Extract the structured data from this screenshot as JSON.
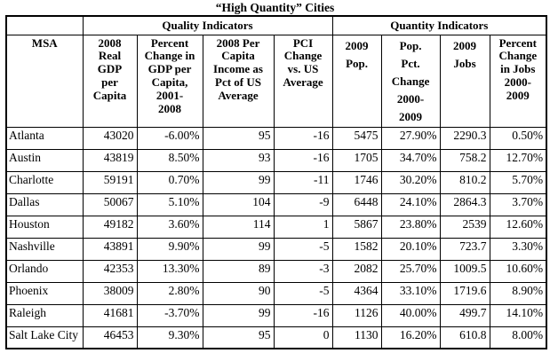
{
  "title": "“High Quantity” Cities",
  "table": {
    "group_headers": {
      "corner": "",
      "quality": "Quality Indicators",
      "quantity": "Quantity Indicators"
    },
    "columns": [
      {
        "label": "MSA"
      },
      {
        "label": "2008\nReal\nGDP\nper\nCapita"
      },
      {
        "label": "Percent\nChange in\nGDP per\nCapita,\n2001-\n2008"
      },
      {
        "label": "2008 Per\nCapita\nIncome as\nPct of US\nAverage"
      },
      {
        "label": "PCI\nChange\nvs. US\nAverage"
      },
      {
        "label": "2009\nPop."
      },
      {
        "label": "Pop.\nPct.\nChange\n2000-\n2009"
      },
      {
        "label": "2009\nJobs"
      },
      {
        "label": "Percent\nChange\nin Jobs\n2000-\n2009"
      }
    ],
    "rows": [
      [
        "Atlanta",
        "43020",
        "-6.00%",
        "95",
        "-16",
        "5475",
        "27.90%",
        "2290.3",
        "0.50%"
      ],
      [
        "Austin",
        "43819",
        "8.50%",
        "93",
        "-16",
        "1705",
        "34.70%",
        "758.2",
        "12.70%"
      ],
      [
        "Charlotte",
        "59191",
        "0.70%",
        "99",
        "-11",
        "1746",
        "30.20%",
        "810.2",
        "5.70%"
      ],
      [
        "Dallas",
        "50067",
        "5.10%",
        "104",
        "-9",
        "6448",
        "24.10%",
        "2864.3",
        "3.70%"
      ],
      [
        "Houston",
        "49182",
        "3.60%",
        "114",
        "1",
        "5867",
        "23.80%",
        "2539",
        "12.60%"
      ],
      [
        "Nashville",
        "43891",
        "9.90%",
        "99",
        "-5",
        "1582",
        "20.10%",
        "723.7",
        "3.30%"
      ],
      [
        "Orlando",
        "42353",
        "13.30%",
        "89",
        "-3",
        "2082",
        "25.70%",
        "1009.5",
        "10.60%"
      ],
      [
        "Phoenix",
        "38009",
        "2.80%",
        "90",
        "-5",
        "4364",
        "33.10%",
        "1719.6",
        "8.90%"
      ],
      [
        "Raleigh",
        "41681",
        "-3.70%",
        "99",
        "-16",
        "1126",
        "40.00%",
        "499.7",
        "14.10%"
      ],
      [
        "Salt Lake City",
        "46453",
        "9.30%",
        "95",
        "0",
        "1130",
        "16.20%",
        "610.8",
        "8.00%"
      ]
    ]
  },
  "colors": {
    "border": "#000000",
    "text": "#000000",
    "background": "#ffffff"
  }
}
